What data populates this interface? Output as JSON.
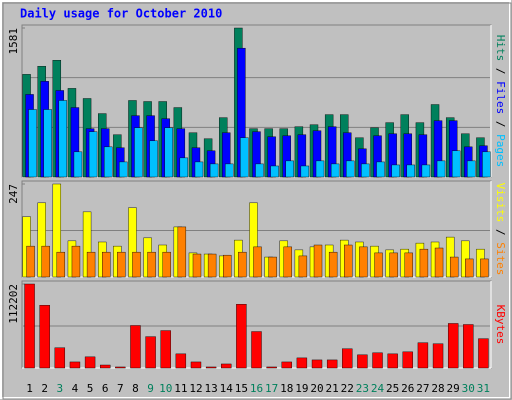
{
  "chart_data": [
    {
      "type": "bar",
      "title": "Daily usage for October 2010",
      "legend_separator": " / ",
      "ylim": [
        0,
        1581
      ],
      "yticks": [
        1581
      ],
      "grid_divisions": 3,
      "series": [
        {
          "name": "Hits",
          "color": "#00805c",
          "values": [
            1089,
            1175,
            1239,
            940,
            833,
            673,
            449,
            812,
            801,
            801,
            737,
            470,
            406,
            630,
            1581,
            513,
            513,
            513,
            534,
            555,
            662,
            662,
            417,
            523,
            577,
            662,
            577,
            769,
            630,
            459,
            417
          ]
        },
        {
          "name": "Files",
          "color": "#0000ff",
          "values": [
            876,
            1015,
            918,
            737,
            513,
            513,
            310,
            651,
            651,
            619,
            513,
            310,
            278,
            470,
            1367,
            481,
            427,
            438,
            449,
            491,
            534,
            470,
            299,
            438,
            459,
            459,
            449,
            598,
            598,
            320,
            331
          ]
        },
        {
          "name": "Pages",
          "color": "#00c0ff",
          "values": [
            716,
            716,
            812,
            267,
            481,
            320,
            160,
            523,
            384,
            523,
            203,
            160,
            139,
            139,
            417,
            139,
            117,
            171,
            117,
            171,
            139,
            171,
            139,
            160,
            128,
            128,
            128,
            171,
            278,
            171,
            267
          ]
        }
      ]
    },
    {
      "type": "bar",
      "ylim": [
        0,
        247
      ],
      "yticks": [
        247
      ],
      "grid_divisions": 2,
      "series": [
        {
          "name": "Visits",
          "color": "#ffff00",
          "values": [
            160,
            197,
            247,
            96,
            173,
            93,
            82,
            184,
            104,
            85,
            133,
            64,
            61,
            56,
            98,
            197,
            53,
            96,
            72,
            80,
            85,
            98,
            93,
            82,
            72,
            74,
            90,
            93,
            106,
            96,
            74
          ]
        },
        {
          "name": "Sites",
          "color": "#ff8000",
          "values": [
            82,
            82,
            66,
            82,
            66,
            66,
            66,
            66,
            66,
            66,
            133,
            61,
            61,
            58,
            66,
            80,
            53,
            80,
            56,
            85,
            66,
            85,
            80,
            64,
            64,
            64,
            74,
            77,
            53,
            48,
            48
          ]
        }
      ]
    },
    {
      "type": "bar",
      "ylim": [
        0,
        112202
      ],
      "yticks": [
        112202
      ],
      "grid_divisions": 2,
      "categories": [
        "1",
        "2",
        "3",
        "4",
        "5",
        "6",
        "7",
        "8",
        "9",
        "10",
        "11",
        "12",
        "13",
        "14",
        "15",
        "16",
        "17",
        "18",
        "19",
        "20",
        "21",
        "22",
        "23",
        "24",
        "25",
        "26",
        "27",
        "28",
        "29",
        "30",
        "31"
      ],
      "category_colors": [
        "#000000",
        "#000000",
        "#00805c",
        "#000000",
        "#000000",
        "#000000",
        "#000000",
        "#000000",
        "#00805c",
        "#00805c",
        "#000000",
        "#000000",
        "#000000",
        "#000000",
        "#000000",
        "#00805c",
        "#00805c",
        "#000000",
        "#000000",
        "#000000",
        "#000000",
        "#000000",
        "#00805c",
        "#00805c",
        "#000000",
        "#000000",
        "#000000",
        "#000000",
        "#000000",
        "#00805c",
        "#00805c"
      ],
      "series": [
        {
          "name": "KBytes",
          "color": "#ff0000",
          "values": [
            112202,
            83800,
            27000,
            8100,
            14900,
            4000,
            1400,
            56800,
            41900,
            50000,
            18900,
            8100,
            1400,
            5400,
            85200,
            48700,
            1400,
            8100,
            13500,
            10800,
            10800,
            25700,
            17600,
            20300,
            18900,
            21600,
            33800,
            32400,
            59500,
            58100,
            39200
          ]
        }
      ]
    }
  ]
}
